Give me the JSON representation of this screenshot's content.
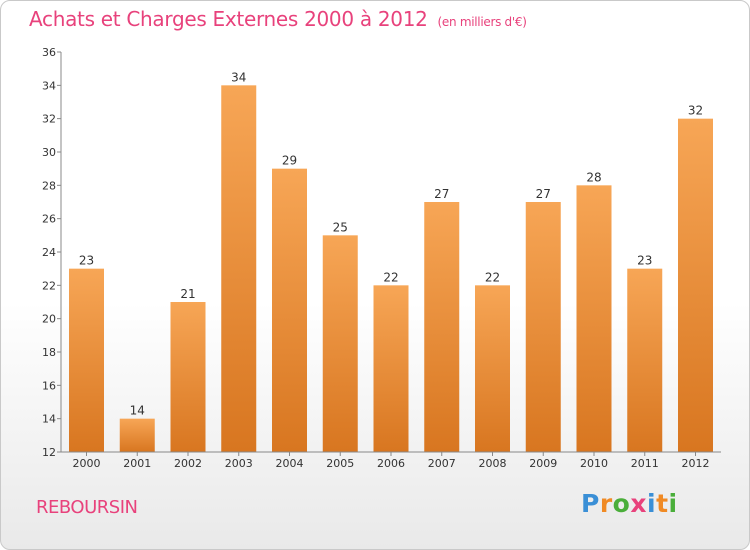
{
  "title": "Achats et Charges Externes 2000 à 2012",
  "title_unit": "(en milliers d'€)",
  "commune": "REBOURSIN",
  "logo": {
    "letters": [
      "P",
      "r",
      "o",
      "x",
      "i",
      "t",
      "i"
    ],
    "colors": [
      "#3a8fd6",
      "#f08a24",
      "#4aae3a",
      "#e8427c",
      "#3a8fd6",
      "#f08a24",
      "#4aae3a"
    ]
  },
  "colors": {
    "title": "#e8427c",
    "bar_light": "#f7a656",
    "bar_dark": "#d87620"
  },
  "chart_data": {
    "type": "bar",
    "categories": [
      "2000",
      "2001",
      "2002",
      "2003",
      "2004",
      "2005",
      "2006",
      "2007",
      "2008",
      "2009",
      "2010",
      "2011",
      "2012"
    ],
    "values": [
      23,
      14,
      21,
      34,
      29,
      25,
      22,
      27,
      22,
      27,
      28,
      23,
      32
    ],
    "ylim": [
      12,
      36
    ],
    "yticks": [
      12,
      14,
      16,
      18,
      20,
      22,
      24,
      26,
      28,
      30,
      32,
      34,
      36
    ],
    "grid": false,
    "legend": "none"
  }
}
